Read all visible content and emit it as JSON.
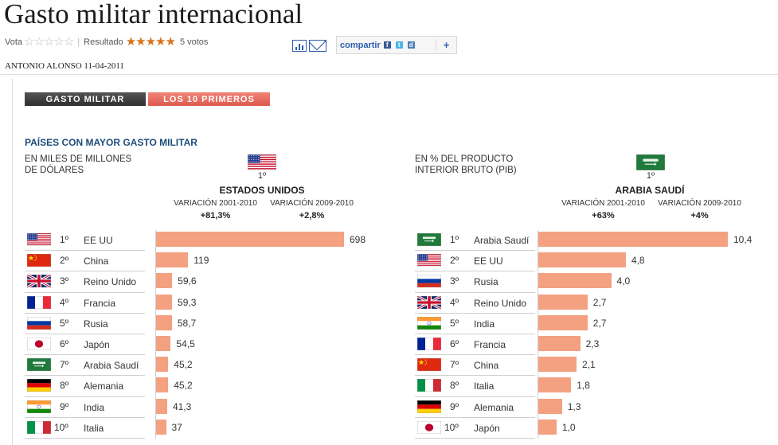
{
  "page": {
    "title": "Gasto militar internacional",
    "vote_label": "Vota",
    "result_label": "Resultado",
    "votes": "5 votos",
    "share_label": "compartir",
    "share_plus": "+",
    "byline": "ANTONIO ALONSO 11-04-2011"
  },
  "tabs": [
    {
      "label": "GASTO MILITAR"
    },
    {
      "label": "LOS 10 PRIMEROS"
    }
  ],
  "section_title": "PAÍSES CON MAYOR GASTO MILITAR",
  "chart_data": [
    {
      "type": "bar",
      "subtitle_line1": "EN MILES DE MILLONES",
      "subtitle_line2": "DE DÓLARES",
      "top_rank": "1º",
      "top_country": "ESTADOS UNIDOS",
      "top_flag": "us",
      "var1_label": "VARIACIÓN 2001-2010",
      "var1_value": "+81,3%",
      "var2_label": "VARIACIÓN 2009-2010",
      "var2_value": "+2,8%",
      "ranks": [
        "1º",
        "2º",
        "3º",
        "4º",
        "5º",
        "6º",
        "7º",
        "8º",
        "9º",
        "10º"
      ],
      "categories": [
        "EE UU",
        "China",
        "Reino Unido",
        "Francia",
        "Rusia",
        "Japón",
        "Arabia Saudí",
        "Alemania",
        "India",
        "Italia"
      ],
      "flags": [
        "us",
        "cn",
        "uk",
        "fr",
        "ru",
        "jp",
        "sa",
        "de",
        "in",
        "it"
      ],
      "values": [
        698,
        119,
        59.6,
        59.3,
        58.7,
        54.5,
        45.2,
        45.2,
        41.3,
        37
      ],
      "labels": [
        "698",
        "119",
        "59,6",
        "59,3",
        "58,7",
        "54,5",
        "45,2",
        "45,2",
        "41,3",
        "37"
      ],
      "xlim": [
        0,
        698
      ]
    },
    {
      "type": "bar",
      "subtitle_line1": "EN % DEL PRODUCTO",
      "subtitle_line2": "INTERIOR BRUTO (PIB)",
      "top_rank": "1º",
      "top_country": "ARABIA SAUDÍ",
      "top_flag": "sa",
      "var1_label": "VARIACIÓN 2001-2010",
      "var1_value": "+63%",
      "var2_label": "VARIACIÓN 2009-2010",
      "var2_value": "+4%",
      "ranks": [
        "1º",
        "2º",
        "3º",
        "4º",
        "5º",
        "6º",
        "7º",
        "8º",
        "9º",
        "10º"
      ],
      "categories": [
        "Arabia Saudí",
        "EE UU",
        "Rusia",
        "Reino Unido",
        "India",
        "Francia",
        "China",
        "Italia",
        "Alemania",
        "Japón"
      ],
      "flags": [
        "sa",
        "us",
        "ru",
        "uk",
        "in",
        "fr",
        "cn",
        "it",
        "de",
        "jp"
      ],
      "values": [
        10.4,
        4.8,
        4.0,
        2.7,
        2.7,
        2.3,
        2.1,
        1.8,
        1.3,
        1.0
      ],
      "labels": [
        "10,4",
        "4,8",
        "4,0",
        "2,7",
        "2,7",
        "2,3",
        "2,1",
        "1,8",
        "1,3",
        "1,0"
      ],
      "xlim": [
        0,
        10.4
      ]
    }
  ],
  "colors": {
    "bar": "#f3a181",
    "section": "#1c4d7a",
    "tab_active": "#df5a4d",
    "tab_dark": "#333333",
    "stars": "#d8731b"
  },
  "icons": [
    "star-empty-icon",
    "star-full-icon",
    "chart-icon",
    "mail-icon",
    "facebook-icon",
    "twitter-icon",
    "delicious-icon"
  ]
}
